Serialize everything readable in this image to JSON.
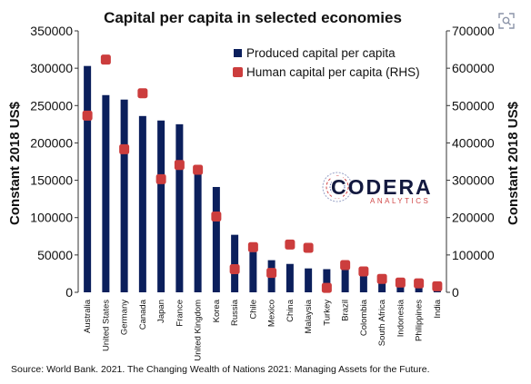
{
  "chart_data": {
    "type": "bar",
    "title": "Capital per capita in selected economies",
    "ylabel_left": "Constant 2018 US$",
    "ylabel_right": "Constant 2018 US$",
    "ylim_left": [
      0,
      350000
    ],
    "ylim_right": [
      0,
      700000
    ],
    "yticks_left": [
      "0",
      "50000",
      "100000",
      "150000",
      "200000",
      "250000",
      "300000",
      "350000"
    ],
    "yticks_right": [
      "0",
      "100000",
      "200000",
      "300000",
      "400000",
      "500000",
      "600000",
      "700000"
    ],
    "legend_position": "top-right",
    "grid": false,
    "categories": [
      "Australia",
      "United States",
      "Germany",
      "Canada",
      "Japan",
      "France",
      "United Kingdom",
      "Korea",
      "Russia",
      "Chile",
      "Mexico",
      "China",
      "Malaysia",
      "Turkey",
      "Brazil",
      "Colombia",
      "South Africa",
      "Indonesia",
      "Philippines",
      "India"
    ],
    "series": [
      {
        "name": "Produced capital per capita",
        "kind": "bar",
        "axis": "left",
        "color": "#0b1f5c",
        "values": [
          303000,
          264000,
          258000,
          236000,
          230000,
          225000,
          167000,
          141000,
          77000,
          54000,
          43000,
          38000,
          32000,
          31000,
          31000,
          24000,
          17000,
          14000,
          10000,
          6000
        ]
      },
      {
        "name": "Human capital per capita (RHS)",
        "kind": "scatter",
        "axis": "right",
        "color": "#cc3d3d",
        "values": [
          473000,
          623000,
          383000,
          533000,
          303000,
          341000,
          328000,
          203000,
          62000,
          121000,
          52000,
          128000,
          119000,
          12000,
          73000,
          56000,
          36000,
          26000,
          24000,
          16000
        ]
      }
    ]
  },
  "source_text": "Source: World Bank. 2021. The Changing Wealth of Nations 2021: Managing Assets for the Future.",
  "logo": {
    "name": "CODERA",
    "tagline": "ANALYTICS"
  },
  "icons": {
    "expand": "expand-icon"
  }
}
